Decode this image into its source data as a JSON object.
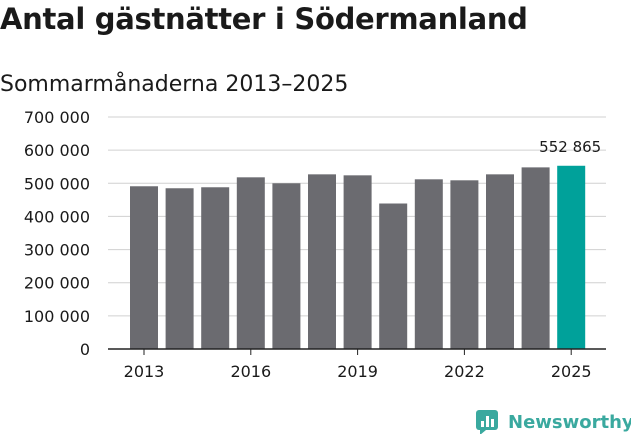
{
  "header": {
    "title": "Antal gästnätter i Södermanland",
    "subtitle": "Sommarmånaderna 2013–2025"
  },
  "brand": {
    "name": "Newsworthy",
    "color": "#3aa99f"
  },
  "colors": {
    "bar": "#6b6b70",
    "highlight": "#00a19a",
    "grid": "#d0d0d0",
    "axis": "#222222"
  },
  "chart_data": {
    "type": "bar",
    "categories": [
      "2013",
      "2014",
      "2015",
      "2016",
      "2017",
      "2018",
      "2019",
      "2020",
      "2021",
      "2022",
      "2023",
      "2024",
      "2025"
    ],
    "values": [
      491000,
      485000,
      488000,
      518000,
      500000,
      527000,
      524000,
      439000,
      512000,
      509000,
      527000,
      548000,
      552865
    ],
    "highlight_index": 12,
    "annotation": {
      "index": 12,
      "text": "552 865"
    },
    "ylim": [
      0,
      700000
    ],
    "yticks": [
      0,
      100000,
      200000,
      300000,
      400000,
      500000,
      600000,
      700000
    ],
    "ytick_labels": [
      "0",
      "100 000",
      "200 000",
      "300 000",
      "400 000",
      "500 000",
      "600 000",
      "700 000"
    ],
    "xtick_labels": [
      "2013",
      "2016",
      "2019",
      "2022",
      "2025"
    ],
    "xtick_indices": [
      0,
      3,
      6,
      9,
      12
    ],
    "grid": true,
    "xlabel": "",
    "ylabel": ""
  }
}
